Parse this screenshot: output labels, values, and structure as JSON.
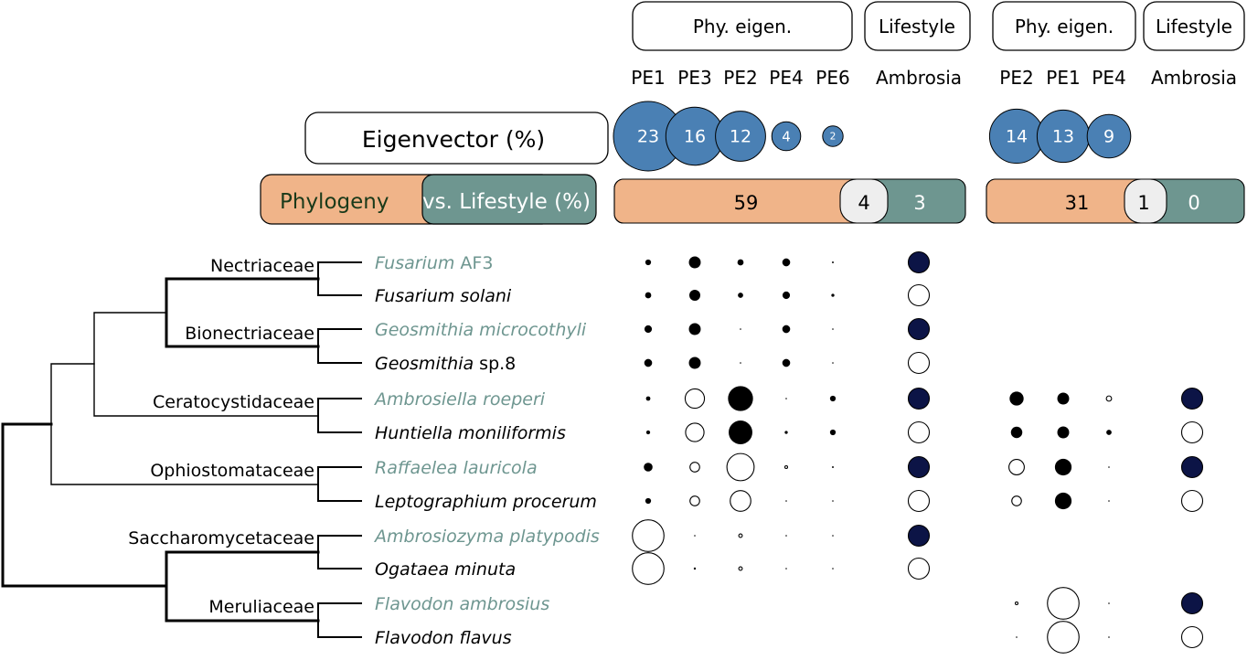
{
  "colors": {
    "ambrosia_taxon": "#6e9690",
    "other_taxon": "#000000",
    "eigen_bubble": "#4a80b4",
    "phylogeny_bar": "#f0b489",
    "lifestyle_bar": "#6e9690",
    "shared_box": "#eeeeee",
    "ambrosia_yes": "#0c1446",
    "header_outline": "#000000",
    "legend_phylogeny_text": "#1a3a1a"
  },
  "headers": {
    "phy_eigen": "Phy. eigen.",
    "lifestyle": "Lifestyle",
    "ambrosia": "Ambrosia"
  },
  "legend": {
    "eigenvector": "Eigenvector (%)",
    "phylogeny": "Phylogeny",
    "vs_lifestyle": "vs. Lifestyle (%)"
  },
  "panels": [
    {
      "pe_labels": [
        "PE1",
        "PE3",
        "PE2",
        "PE4",
        "PE6"
      ],
      "eigenvector_pct": [
        23,
        16,
        12,
        4,
        2
      ],
      "partition": {
        "phylogeny": 59,
        "shared": 4,
        "lifestyle": 3
      }
    },
    {
      "pe_labels": [
        "PE2",
        "PE1",
        "PE4"
      ],
      "eigenvector_pct": [
        14,
        13,
        9
      ],
      "partition": {
        "phylogeny": 31,
        "shared": 1,
        "lifestyle": 0
      }
    }
  ],
  "taxa": [
    {
      "genus": "Fusarium",
      "rest": " AF3",
      "ambrosia": true,
      "p1": [
        {
          "s": "f",
          "v": 0.13
        },
        {
          "s": "f",
          "v": 0.27
        },
        {
          "s": "f",
          "v": 0.14
        },
        {
          "s": "f",
          "v": 0.18
        },
        {
          "s": "f",
          "v": 0.04
        }
      ],
      "p2": null,
      "p2_ambrosia": null
    },
    {
      "genus": "Fusarium solani",
      "rest": "",
      "ambrosia": false,
      "p1": [
        {
          "s": "f",
          "v": 0.14
        },
        {
          "s": "f",
          "v": 0.25
        },
        {
          "s": "f",
          "v": 0.12
        },
        {
          "s": "f",
          "v": 0.17
        },
        {
          "s": "f",
          "v": 0.07
        }
      ],
      "p2": null,
      "p2_ambrosia": null
    },
    {
      "genus": "Geosmithia microcothyli",
      "rest": "",
      "ambrosia": true,
      "p1": [
        {
          "s": "f",
          "v": 0.17
        },
        {
          "s": "f",
          "v": 0.27
        },
        {
          "s": "f",
          "v": 0.03
        },
        {
          "s": "f",
          "v": 0.18
        },
        {
          "s": "f",
          "v": 0.02
        }
      ],
      "p2": null,
      "p2_ambrosia": null
    },
    {
      "genus": "Geosmithia",
      "rest": " sp.8",
      "ambrosia": false,
      "p1": [
        {
          "s": "f",
          "v": 0.18
        },
        {
          "s": "f",
          "v": 0.27
        },
        {
          "s": "f",
          "v": 0.03
        },
        {
          "s": "f",
          "v": 0.18
        },
        {
          "s": "f",
          "v": 0.02
        }
      ],
      "p2": null,
      "p2_ambrosia": null
    },
    {
      "genus": "Ambrosiella roeperi",
      "rest": "",
      "ambrosia": true,
      "p1": [
        {
          "s": "f",
          "v": 0.1
        },
        {
          "s": "o",
          "v": 0.44
        },
        {
          "s": "f",
          "v": 0.57
        },
        {
          "s": "f",
          "v": 0.03
        },
        {
          "s": "f",
          "v": 0.13
        }
      ],
      "p2": [
        {
          "s": "f",
          "v": 0.32
        },
        {
          "s": "f",
          "v": 0.27
        },
        {
          "s": "o",
          "v": 0.12
        }
      ],
      "p2_ambrosia": true
    },
    {
      "genus": "Huntiella moniliformis",
      "rest": "",
      "ambrosia": false,
      "p1": [
        {
          "s": "f",
          "v": 0.09
        },
        {
          "s": "o",
          "v": 0.42
        },
        {
          "s": "f",
          "v": 0.54
        },
        {
          "s": "f",
          "v": 0.07
        },
        {
          "s": "f",
          "v": 0.13
        }
      ],
      "p2": [
        {
          "s": "f",
          "v": 0.26
        },
        {
          "s": "f",
          "v": 0.27
        },
        {
          "s": "f",
          "v": 0.12
        }
      ],
      "p2_ambrosia": false
    },
    {
      "genus": "Raffaelea lauricola",
      "rest": "",
      "ambrosia": true,
      "p1": [
        {
          "s": "f",
          "v": 0.2
        },
        {
          "s": "o",
          "v": 0.22
        },
        {
          "s": "o",
          "v": 0.62
        },
        {
          "s": "o",
          "v": 0.06
        },
        {
          "s": "f",
          "v": 0.04
        }
      ],
      "p2": [
        {
          "s": "o",
          "v": 0.35
        },
        {
          "s": "f",
          "v": 0.38
        },
        {
          "s": "f",
          "v": 0.02
        }
      ],
      "p2_ambrosia": true
    },
    {
      "genus": "Leptographium procerum",
      "rest": "",
      "ambrosia": false,
      "p1": [
        {
          "s": "f",
          "v": 0.13
        },
        {
          "s": "o",
          "v": 0.22
        },
        {
          "s": "o",
          "v": 0.47
        },
        {
          "s": "f",
          "v": 0.03
        },
        {
          "s": "f",
          "v": 0.03
        }
      ],
      "p2": [
        {
          "s": "o",
          "v": 0.22
        },
        {
          "s": "f",
          "v": 0.38
        },
        {
          "s": "f",
          "v": 0.02
        }
      ],
      "p2_ambrosia": false
    },
    {
      "genus": "Ambrosiozyma platypodis",
      "rest": "",
      "ambrosia": true,
      "p1": [
        {
          "s": "o",
          "v": 0.72
        },
        {
          "s": "f",
          "v": 0.02
        },
        {
          "s": "o",
          "v": 0.08
        },
        {
          "s": "f",
          "v": 0.03
        },
        {
          "s": "f",
          "v": 0.03
        }
      ],
      "p2": null,
      "p2_ambrosia": null
    },
    {
      "genus": "Ogataea minuta",
      "rest": "",
      "ambrosia": false,
      "p1": [
        {
          "s": "o",
          "v": 0.72
        },
        {
          "s": "f",
          "v": 0.05
        },
        {
          "s": "o",
          "v": 0.08
        },
        {
          "s": "f",
          "v": 0.03
        },
        {
          "s": "f",
          "v": 0.03
        }
      ],
      "p2": null,
      "p2_ambrosia": null
    },
    {
      "genus": "Flavodon ambrosius",
      "rest": "",
      "ambrosia": true,
      "p1": null,
      "p2": [
        {
          "s": "o",
          "v": 0.05
        },
        {
          "s": "o",
          "v": 0.72
        },
        {
          "s": "f",
          "v": 0.02
        }
      ],
      "p2_ambrosia": true
    },
    {
      "genus": "Flavodon flavus",
      "rest": "",
      "ambrosia": false,
      "p1": null,
      "p2": [
        {
          "s": "f",
          "v": 0.02
        },
        {
          "s": "o",
          "v": 0.72
        },
        {
          "s": "f",
          "v": 0.02
        }
      ],
      "p2_ambrosia": false
    }
  ],
  "families": [
    "Nectriaceae",
    "Bionectriaceae",
    "Ceratocystidaceae",
    "Ophiostomataceae",
    "Saccharomycetaceae",
    "Meruliaceae"
  ]
}
